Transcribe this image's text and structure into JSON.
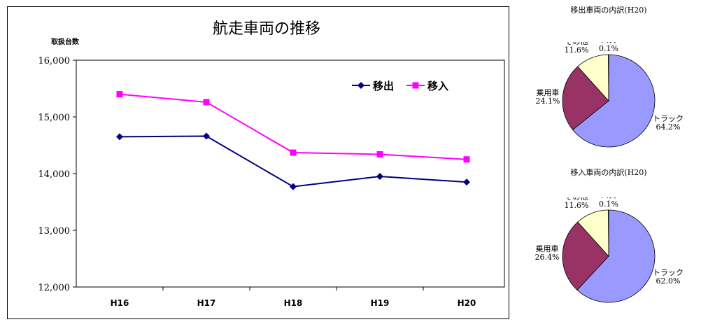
{
  "chart_data": [
    {
      "type": "line",
      "title": "航走車両の推移",
      "ylabel": "取扱台数",
      "categories": [
        "H16",
        "H17",
        "H18",
        "H19",
        "H20"
      ],
      "ylim": [
        12000,
        16000
      ],
      "yticks": [
        "12,000",
        "13,000",
        "14,000",
        "15,000",
        "16,000"
      ],
      "legend": "top-right",
      "series": [
        {
          "name": "移出",
          "color": "#000080",
          "marker": "diamond",
          "values": [
            14650,
            14660,
            13770,
            13950,
            13850
          ]
        },
        {
          "name": "移入",
          "color": "#ff00ff",
          "marker": "square",
          "values": [
            15400,
            15260,
            14370,
            14340,
            14250
          ]
        }
      ]
    },
    {
      "type": "pie",
      "title": "移出車両の内訳(H20)",
      "slices": [
        {
          "label": "トラック",
          "value": 64.2,
          "display": "64.2%",
          "color": "#9999ff"
        },
        {
          "label": "乗用車",
          "value": 24.1,
          "display": "24.1%",
          "color": "#993366"
        },
        {
          "label": "その他",
          "value": 11.6,
          "display": "11.6%",
          "color": "#ffffcc"
        },
        {
          "label": "バス",
          "value": 0.1,
          "display": "0.1%",
          "color": "#ccffff"
        }
      ]
    },
    {
      "type": "pie",
      "title": "移入車両の内訳(H20)",
      "slices": [
        {
          "label": "トラック",
          "value": 62.0,
          "display": "62.0%",
          "color": "#9999ff"
        },
        {
          "label": "乗用車",
          "value": 26.4,
          "display": "26.4%",
          "color": "#993366"
        },
        {
          "label": "その他",
          "value": 11.6,
          "display": "11.6%",
          "color": "#ffffcc"
        },
        {
          "label": "バス",
          "value": 0.1,
          "display": "0.1%",
          "color": "#ccffff"
        }
      ]
    }
  ]
}
